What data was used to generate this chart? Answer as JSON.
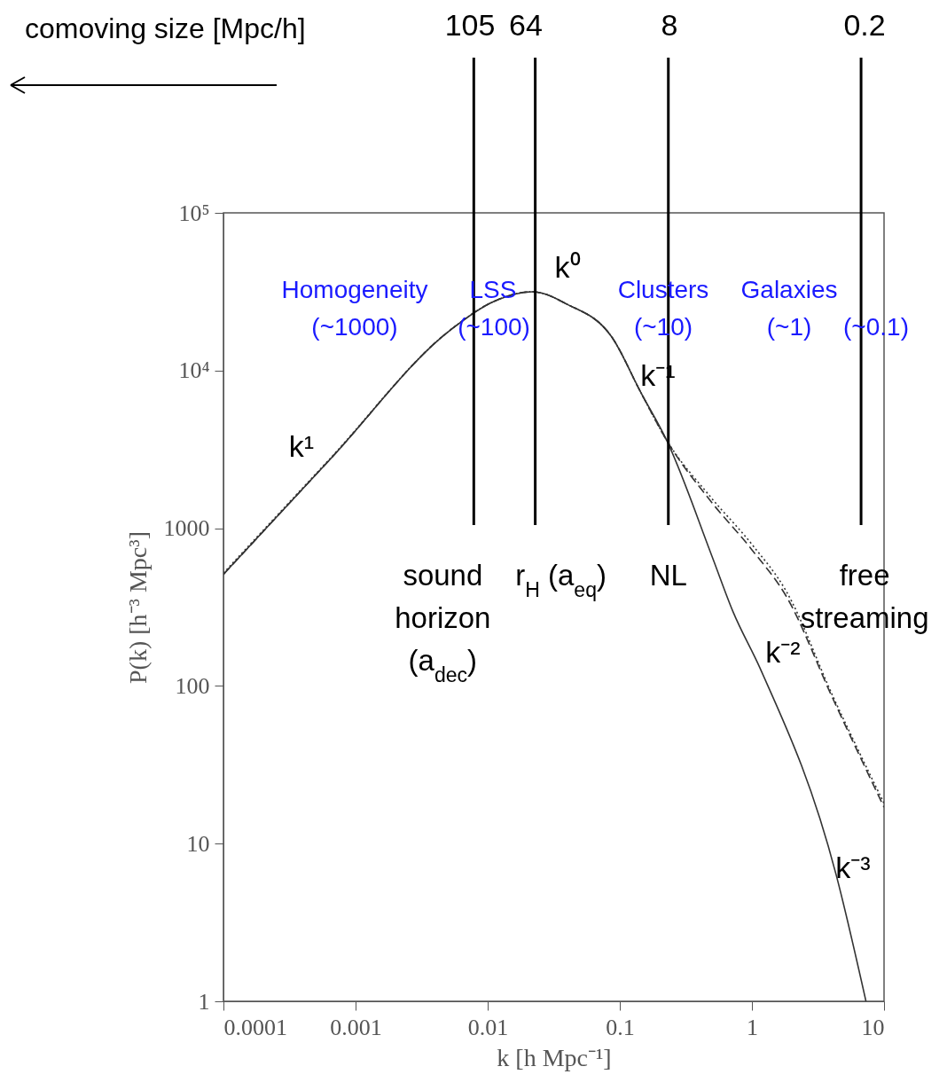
{
  "chart_data": {
    "type": "line",
    "xlabel": "k [h Mpc⁻¹]",
    "ylabel": "P(k) [h⁻³ Mpc³]",
    "log": "xy",
    "xlim": [
      0.0001,
      10
    ],
    "ylim": [
      1,
      100000
    ],
    "xticks": [
      0.0001,
      0.001,
      0.01,
      0.1,
      1,
      10
    ],
    "yticks": [
      1,
      10,
      100,
      1000,
      {
        "value": 10000,
        "label": "10⁴"
      },
      {
        "value": 100000,
        "label": "10⁵"
      }
    ],
    "grid": false,
    "marker": "none",
    "series": [
      {
        "color": "#333333",
        "line_style": "solid",
        "x": [
          0.0001,
          0.00065,
          0.0051,
          0.0111,
          0.0217,
          0.04,
          0.087,
          0.145,
          0.227,
          0.5,
          0.72,
          1.15,
          4.35,
          7.3
        ],
        "values": [
          510,
          2770,
          17800,
          27400,
          31600,
          26300,
          16300,
          7200,
          3590,
          660,
          295,
          130,
          6.3,
          1
        ]
      },
      {
        "color": "#333333",
        "line_style": "dashed",
        "x": [
          0.0001,
          0.00065,
          0.0051,
          0.0111,
          0.0217,
          0.04,
          0.087,
          0.145,
          0.227,
          0.48,
          1,
          1.83,
          4.1,
          10
        ],
        "values": [
          510,
          2770,
          17800,
          27400,
          31600,
          26300,
          16300,
          7200,
          3590,
          1510,
          730,
          367,
          83,
          17
        ]
      },
      {
        "color": "#333333",
        "line_style": "dotted",
        "x": [
          0.0001,
          0.00065,
          0.0051,
          0.0111,
          0.0217,
          0.04,
          0.087,
          0.145,
          0.227,
          0.48,
          1,
          1.83,
          4.1,
          10
        ],
        "values": [
          520,
          2800,
          17800,
          27400,
          31600,
          26300,
          16300,
          7200,
          3600,
          1600,
          790,
          395,
          86,
          18
        ]
      }
    ],
    "ref_lines": [
      {
        "axis": "x",
        "value": 0.00785,
        "label": "sound\nhorizon\n(a$_{dec}$)"
      },
      {
        "axis": "x",
        "value": 0.0229,
        "label": "r$_{H}$ (a$_{eq}$)"
      },
      {
        "axis": "x",
        "value": 0.233,
        "label": "NL"
      },
      {
        "axis": "x",
        "value": 6.7,
        "label": "free\nstreaming"
      }
    ],
    "annotations": [
      "comoving size [Mpc/h]",
      "105",
      "64",
      "8",
      "0.2",
      "Homogeneity",
      "(~1000)",
      "LSS",
      "(~100)",
      "Clusters",
      "(~10)",
      "Galaxies",
      "(~1)",
      "(~0.1)",
      "k¹",
      "k⁰",
      "k⁻¹",
      "k⁻²",
      "k⁻³"
    ]
  }
}
